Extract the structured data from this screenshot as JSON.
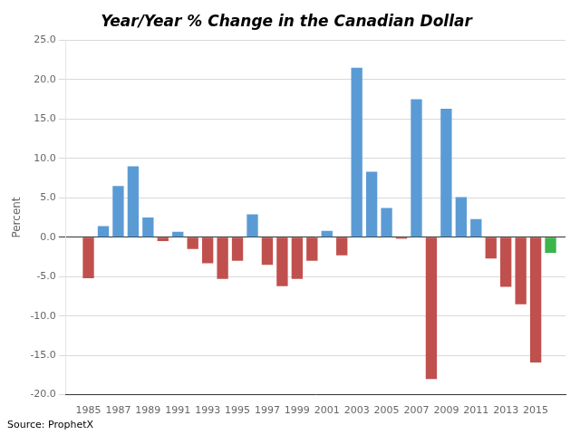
{
  "chart_data": {
    "type": "bar",
    "title": "Year/Year % Change in the Canadian Dollar",
    "ylabel": "Percent",
    "source": "Source: ProphetX",
    "x": [
      1985,
      1986,
      1987,
      1988,
      1989,
      1990,
      1991,
      1992,
      1993,
      1994,
      1995,
      1996,
      1997,
      1998,
      1999,
      2000,
      2001,
      2002,
      2003,
      2004,
      2005,
      2006,
      2007,
      2008,
      2009,
      2010,
      2011,
      2012,
      2013,
      2014,
      2015,
      2016
    ],
    "values": [
      -5.2,
      1.4,
      6.5,
      9.0,
      2.5,
      -0.5,
      0.7,
      -1.5,
      -3.3,
      -5.3,
      -3.0,
      2.9,
      -3.5,
      -6.2,
      -5.3,
      -3.0,
      0.8,
      -2.3,
      21.5,
      8.3,
      3.7,
      -0.2,
      17.5,
      -18.0,
      16.3,
      5.1,
      2.3,
      -2.7,
      -6.3,
      -8.5,
      -15.9,
      -2.0
    ],
    "colors": [
      "#C0504D",
      "#5B9BD5",
      "#5B9BD5",
      "#5B9BD5",
      "#5B9BD5",
      "#C0504D",
      "#5B9BD5",
      "#C0504D",
      "#C0504D",
      "#C0504D",
      "#C0504D",
      "#5B9BD5",
      "#C0504D",
      "#C0504D",
      "#C0504D",
      "#C0504D",
      "#5B9BD5",
      "#C0504D",
      "#5B9BD5",
      "#5B9BD5",
      "#5B9BD5",
      "#C0504D",
      "#5B9BD5",
      "#C0504D",
      "#5B9BD5",
      "#5B9BD5",
      "#5B9BD5",
      "#C0504D",
      "#C0504D",
      "#C0504D",
      "#C0504D",
      "#3CB54A"
    ],
    "xlim": [
      1983.5,
      2017.0
    ],
    "xticks": [
      1985,
      1987,
      1989,
      1991,
      1993,
      1995,
      1997,
      1999,
      2001,
      2003,
      2005,
      2007,
      2009,
      2011,
      2013,
      2015
    ],
    "ylim": [
      -20.0,
      25.0
    ],
    "yticks": [
      {
        "value": -20.0,
        "label": "-20.0"
      },
      {
        "value": -15.0,
        "label": "-15.0"
      },
      {
        "value": -10.0,
        "label": "-10.0"
      },
      {
        "value": -5.0,
        "label": "-5.0"
      },
      {
        "value": 0.0,
        "label": "0.0"
      },
      {
        "value": 5.0,
        "label": "5.0"
      },
      {
        "value": 10.0,
        "label": "10.0"
      },
      {
        "value": 15.0,
        "label": "15.0"
      },
      {
        "value": 20.0,
        "label": "20.0"
      },
      {
        "value": 25.0,
        "label": "25.0"
      }
    ],
    "grid": "y"
  }
}
